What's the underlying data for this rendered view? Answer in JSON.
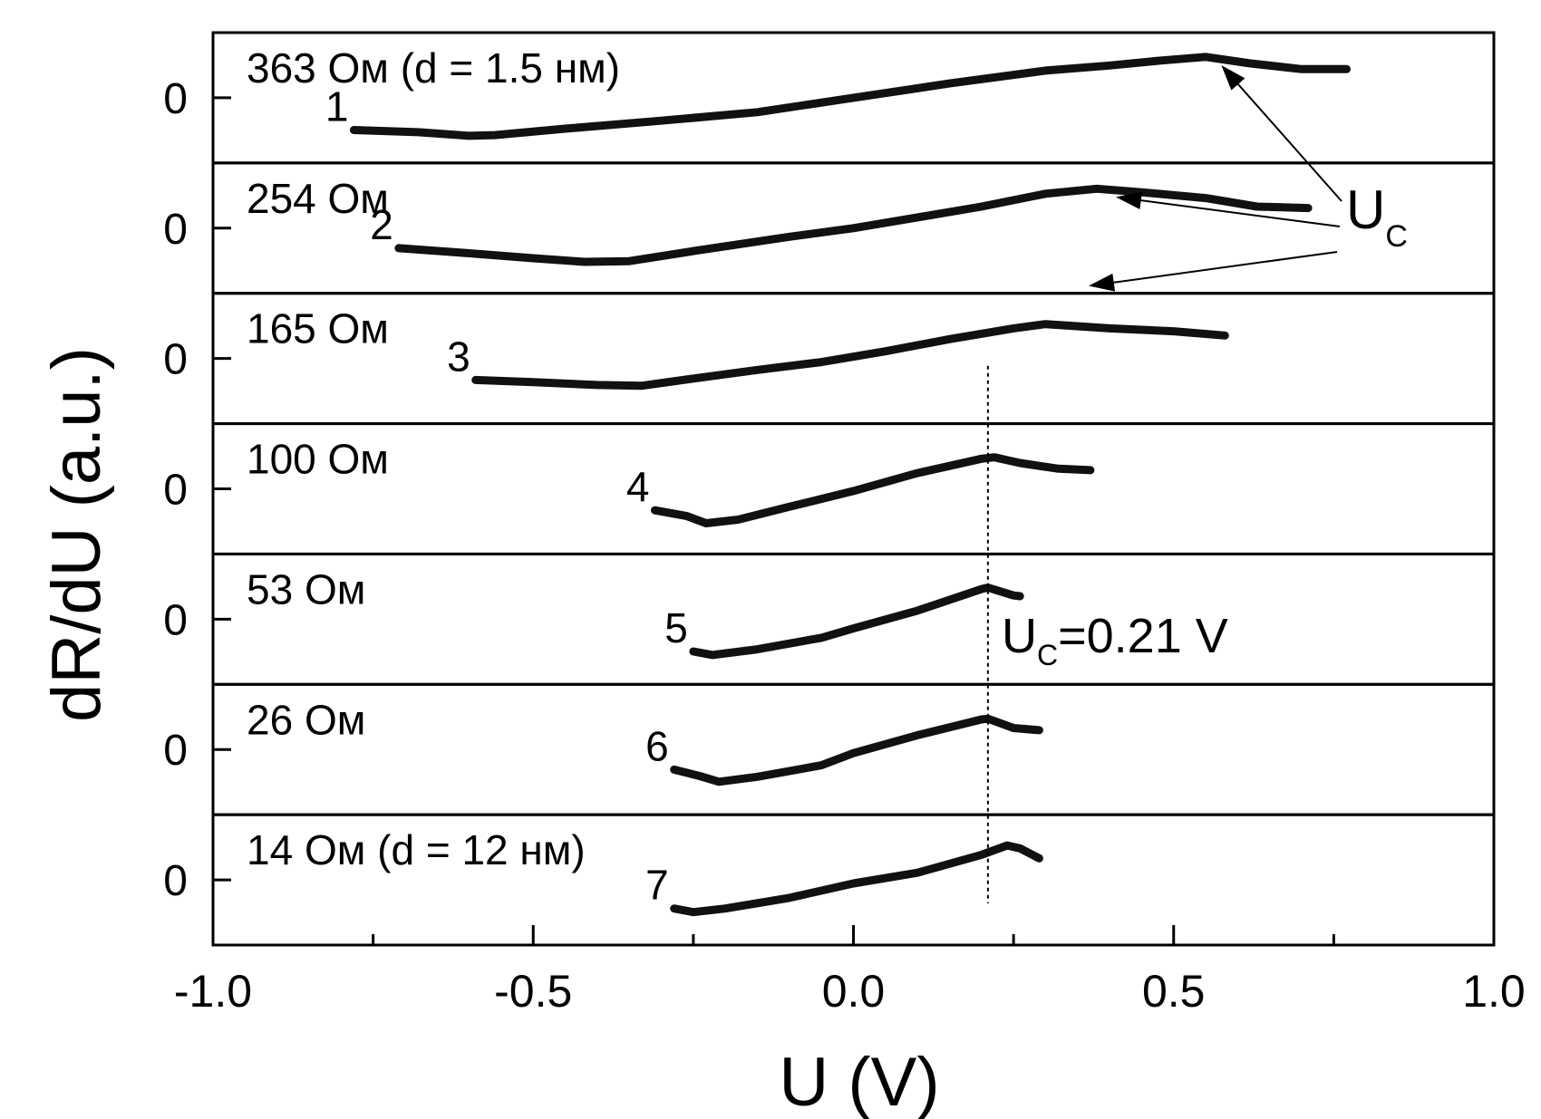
{
  "chart_data": {
    "type": "line",
    "xlabel": "U (V)",
    "ylabel": "dR/dU (a.u.)",
    "xlim": [
      -1.0,
      1.0
    ],
    "x_ticks": [
      "-1.0",
      "-0.5",
      "0.0",
      "0.5",
      "1.0"
    ],
    "panel_zero_label": "0",
    "series": [
      {
        "num": "1",
        "label": "363 Ом (d = 1.5 нм)",
        "points": [
          [
            -0.78,
            -0.45
          ],
          [
            -0.68,
            -0.48
          ],
          [
            -0.6,
            -0.53
          ],
          [
            -0.56,
            -0.52
          ],
          [
            -0.45,
            -0.43
          ],
          [
            -0.3,
            -0.32
          ],
          [
            -0.15,
            -0.2
          ],
          [
            0.0,
            0.0
          ],
          [
            0.15,
            0.2
          ],
          [
            0.3,
            0.38
          ],
          [
            0.4,
            0.45
          ],
          [
            0.48,
            0.52
          ],
          [
            0.55,
            0.57
          ],
          [
            0.62,
            0.48
          ],
          [
            0.7,
            0.4
          ],
          [
            0.77,
            0.4
          ]
        ]
      },
      {
        "num": "2",
        "label": "254 Ом",
        "points": [
          [
            -0.71,
            -0.28
          ],
          [
            -0.6,
            -0.35
          ],
          [
            -0.5,
            -0.42
          ],
          [
            -0.42,
            -0.47
          ],
          [
            -0.35,
            -0.46
          ],
          [
            -0.25,
            -0.32
          ],
          [
            -0.1,
            -0.12
          ],
          [
            0.0,
            0.0
          ],
          [
            0.1,
            0.15
          ],
          [
            0.2,
            0.3
          ],
          [
            0.3,
            0.48
          ],
          [
            0.38,
            0.55
          ],
          [
            0.45,
            0.5
          ],
          [
            0.55,
            0.42
          ],
          [
            0.63,
            0.3
          ],
          [
            0.71,
            0.28
          ]
        ]
      },
      {
        "num": "3",
        "label": "165 Ом",
        "points": [
          [
            -0.59,
            -0.3
          ],
          [
            -0.5,
            -0.33
          ],
          [
            -0.4,
            -0.37
          ],
          [
            -0.33,
            -0.38
          ],
          [
            -0.25,
            -0.28
          ],
          [
            -0.15,
            -0.16
          ],
          [
            -0.05,
            -0.05
          ],
          [
            0.05,
            0.1
          ],
          [
            0.15,
            0.27
          ],
          [
            0.25,
            0.42
          ],
          [
            0.3,
            0.48
          ],
          [
            0.4,
            0.42
          ],
          [
            0.5,
            0.38
          ],
          [
            0.58,
            0.32
          ]
        ]
      },
      {
        "num": "4",
        "label": "100 Ом",
        "points": [
          [
            -0.31,
            -0.3
          ],
          [
            -0.26,
            -0.38
          ],
          [
            -0.23,
            -0.48
          ],
          [
            -0.18,
            -0.43
          ],
          [
            -0.1,
            -0.25
          ],
          [
            0.0,
            -0.03
          ],
          [
            0.1,
            0.22
          ],
          [
            0.2,
            0.42
          ],
          [
            0.22,
            0.44
          ],
          [
            0.26,
            0.36
          ],
          [
            0.32,
            0.28
          ],
          [
            0.37,
            0.26
          ]
        ]
      },
      {
        "num": "5",
        "label": "53 Ом",
        "points": [
          [
            -0.25,
            -0.45
          ],
          [
            -0.22,
            -0.5
          ],
          [
            -0.15,
            -0.42
          ],
          [
            -0.05,
            -0.26
          ],
          [
            0.0,
            -0.13
          ],
          [
            0.1,
            0.12
          ],
          [
            0.2,
            0.42
          ],
          [
            0.21,
            0.44
          ],
          [
            0.25,
            0.33
          ],
          [
            0.26,
            0.32
          ]
        ]
      },
      {
        "num": "6",
        "label": "26 Ом",
        "points": [
          [
            -0.28,
            -0.28
          ],
          [
            -0.24,
            -0.37
          ],
          [
            -0.21,
            -0.45
          ],
          [
            -0.15,
            -0.38
          ],
          [
            -0.05,
            -0.22
          ],
          [
            0.0,
            -0.05
          ],
          [
            0.1,
            0.2
          ],
          [
            0.2,
            0.42
          ],
          [
            0.21,
            0.43
          ],
          [
            0.25,
            0.3
          ],
          [
            0.29,
            0.27
          ]
        ]
      },
      {
        "num": "7",
        "label": "14 Ом (d = 12 нм)",
        "points": [
          [
            -0.28,
            -0.4
          ],
          [
            -0.25,
            -0.45
          ],
          [
            -0.2,
            -0.4
          ],
          [
            -0.1,
            -0.25
          ],
          [
            0.0,
            -0.05
          ],
          [
            0.1,
            0.1
          ],
          [
            0.2,
            0.35
          ],
          [
            0.24,
            0.48
          ],
          [
            0.26,
            0.44
          ],
          [
            0.29,
            0.3
          ]
        ]
      }
    ],
    "uc_value": 0.21,
    "uc_annotation": {
      "main": "U",
      "sub": "C",
      "rest": "=0.21 V"
    },
    "uc_arrow_label": {
      "main": "U",
      "sub": "C"
    }
  }
}
